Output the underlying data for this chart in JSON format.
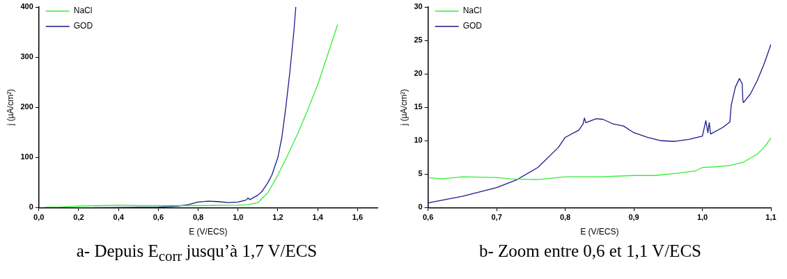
{
  "chart_data": [
    {
      "type": "line",
      "xlabel": "E (V/ECS)",
      "ylabel": "j (µA/cm²)",
      "legend": "top left",
      "grid": false,
      "marker": "none",
      "line_style": "solid",
      "xlim": [
        0,
        1.7
      ],
      "xticks": [
        {
          "value": 0,
          "label": "0,0"
        },
        {
          "value": 0.2,
          "label": "0,2"
        },
        {
          "value": 0.4,
          "label": "0,4"
        },
        {
          "value": 0.6,
          "label": "0,6"
        },
        {
          "value": 0.8,
          "label": "0,8"
        },
        {
          "value": 1.0,
          "label": "1,0"
        },
        {
          "value": 1.2,
          "label": "1,2"
        },
        {
          "value": 1.4,
          "label": "1,4"
        },
        {
          "value": 1.6,
          "label": "1,6"
        }
      ],
      "ylim": [
        0,
        400
      ],
      "yticks": [
        0,
        100,
        200,
        300,
        400
      ],
      "series": [
        {
          "name": "NaCl",
          "color": "#33ee33",
          "x": [
            0.03,
            0.1,
            0.2,
            0.3,
            0.4,
            0.5,
            0.6,
            0.8,
            1.0,
            1.05,
            1.1,
            1.15,
            1.2,
            1.25,
            1.3,
            1.35,
            1.4,
            1.45,
            1.5
          ],
          "values": [
            1,
            1,
            3,
            4,
            5,
            4,
            4,
            4,
            5,
            6,
            10,
            30,
            65,
            105,
            148,
            195,
            245,
            305,
            365
          ]
        },
        {
          "name": "GOD",
          "color": "#1a1a8c",
          "x": [
            0.28,
            0.6,
            0.7,
            0.75,
            0.8,
            0.85,
            0.9,
            0.95,
            1.0,
            1.04,
            1.05,
            1.06,
            1.1,
            1.12,
            1.15,
            1.17,
            1.2,
            1.22,
            1.24,
            1.26,
            1.28,
            1.29
          ],
          "values": [
            0,
            1,
            3,
            6,
            11,
            13,
            12,
            10,
            11,
            15,
            19,
            16,
            25,
            32,
            50,
            65,
            100,
            140,
            200,
            270,
            350,
            400
          ]
        }
      ],
      "annotations": [
        "a- Depuis E$_{corr}$ jusqu’à 1,7 V/ECS"
      ]
    },
    {
      "type": "line",
      "xlabel": "E (V/ECS)",
      "ylabel": "j (µA/cm²)",
      "legend": "top left",
      "grid": false,
      "marker": "none",
      "line_style": "solid",
      "xlim": [
        0.6,
        1.1
      ],
      "xticks": [
        {
          "value": 0.6,
          "label": "0,6"
        },
        {
          "value": 0.7,
          "label": "0,7"
        },
        {
          "value": 0.8,
          "label": "0,8"
        },
        {
          "value": 0.9,
          "label": "0,9"
        },
        {
          "value": 1.0,
          "label": "1,0"
        },
        {
          "value": 1.1,
          "label": "1,1"
        }
      ],
      "ylim": [
        0,
        30
      ],
      "yticks": [
        0,
        5,
        10,
        15,
        20,
        25,
        30
      ],
      "series": [
        {
          "name": "NaCl",
          "color": "#33ee33",
          "x": [
            0.6,
            0.62,
            0.65,
            0.7,
            0.72,
            0.76,
            0.8,
            0.85,
            0.9,
            0.93,
            0.96,
            0.99,
            1.0,
            1.02,
            1.04,
            1.06,
            1.08,
            1.09,
            1.1
          ],
          "values": [
            4.5,
            4.3,
            4.6,
            4.5,
            4.3,
            4.2,
            4.6,
            4.6,
            4.8,
            4.8,
            5.1,
            5.5,
            6.0,
            6.1,
            6.3,
            6.8,
            8.0,
            9.0,
            10.4
          ]
        },
        {
          "name": "GOD",
          "color": "#1a1a8c",
          "x": [
            0.6,
            0.65,
            0.7,
            0.73,
            0.76,
            0.79,
            0.8,
            0.82,
            0.826,
            0.828,
            0.83,
            0.845,
            0.855,
            0.87,
            0.885,
            0.9,
            0.92,
            0.94,
            0.96,
            0.98,
            1.0,
            1.005,
            1.008,
            1.01,
            1.012,
            1.03,
            1.04,
            1.042,
            1.048,
            1.054,
            1.058,
            1.059,
            1.06,
            1.07,
            1.08,
            1.09,
            1.1
          ],
          "values": [
            0.7,
            1.7,
            3,
            4.2,
            6,
            9,
            10.5,
            11.6,
            12.5,
            13.4,
            12.7,
            13.3,
            13.2,
            12.5,
            12.2,
            11.2,
            10.5,
            10.0,
            9.9,
            10.2,
            10.7,
            13.0,
            11.2,
            12.7,
            11.0,
            12.0,
            12.8,
            15.3,
            18.0,
            19.3,
            18.5,
            16.0,
            15.7,
            17.0,
            19.0,
            21.5,
            24.4
          ]
        }
      ],
      "annotations": [
        "b- Zoom entre 0,6 et 1,1 V/ECS"
      ]
    }
  ]
}
